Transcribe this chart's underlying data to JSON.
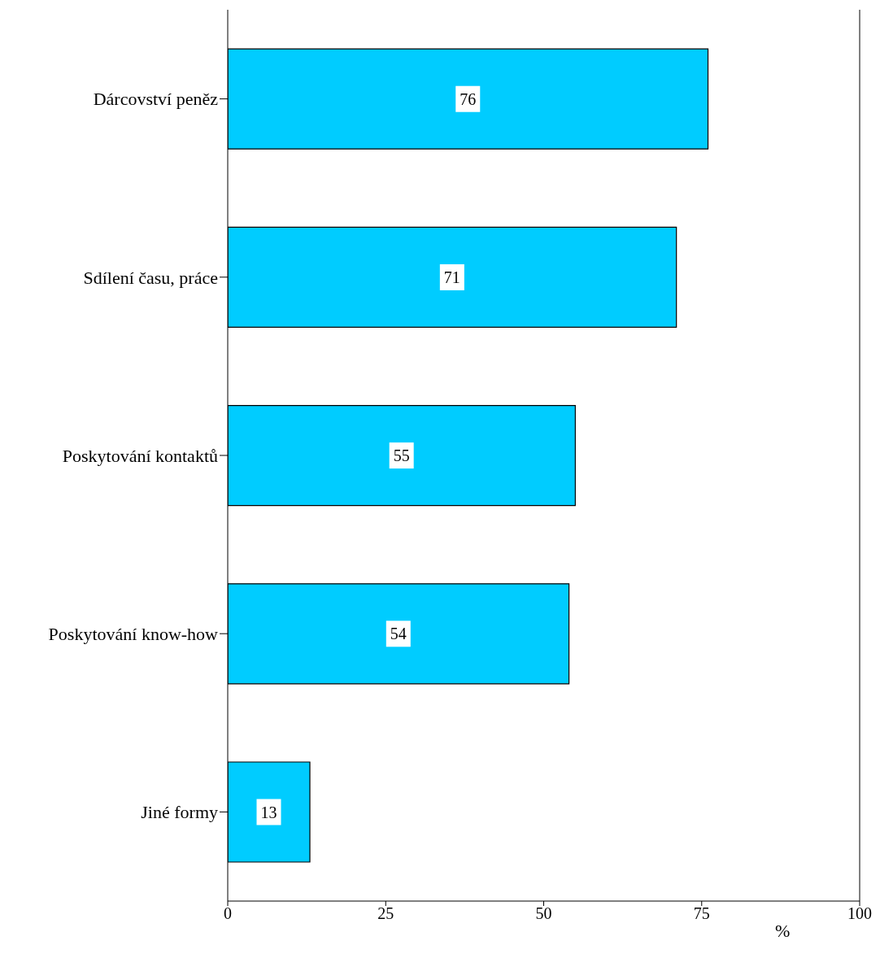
{
  "chart_data": {
    "type": "bar",
    "orientation": "horizontal",
    "xlabel": "%",
    "categories": [
      "Dárcovství peněz",
      "Sdílení času, práce",
      "Poskytování kontaktů",
      "Poskytování know-how",
      "Jiné formy"
    ],
    "values": [
      76,
      71,
      55,
      54,
      13
    ],
    "color": "#00ccff",
    "xlim": [
      0,
      100
    ],
    "xticks": [
      0,
      25,
      50,
      75,
      100
    ],
    "grid": false,
    "legend": false,
    "data_labels": true
  }
}
